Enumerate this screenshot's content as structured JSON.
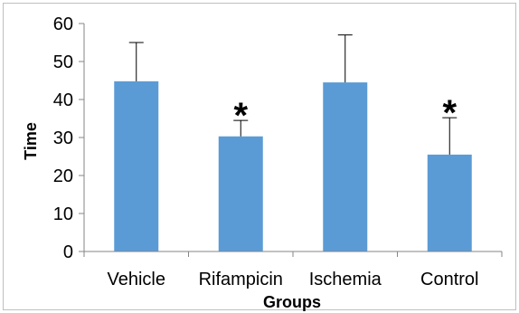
{
  "chart_data": {
    "type": "bar",
    "title": "",
    "xlabel": "Groups",
    "ylabel": "Time",
    "categories": [
      "Vehicle",
      "Rifampicin",
      "Ischemia",
      "Control"
    ],
    "values": [
      44.8,
      30.3,
      44.5,
      25.5
    ],
    "error_upper": [
      55,
      34.5,
      57,
      35.2
    ],
    "significance": [
      "",
      "*",
      "",
      "*"
    ],
    "ylim": [
      0,
      60
    ],
    "yticks": [
      "0",
      "10",
      "20",
      "30",
      "40",
      "50",
      "60"
    ],
    "grid": false,
    "legend": "none",
    "bar_color": "#5b9bd5"
  }
}
